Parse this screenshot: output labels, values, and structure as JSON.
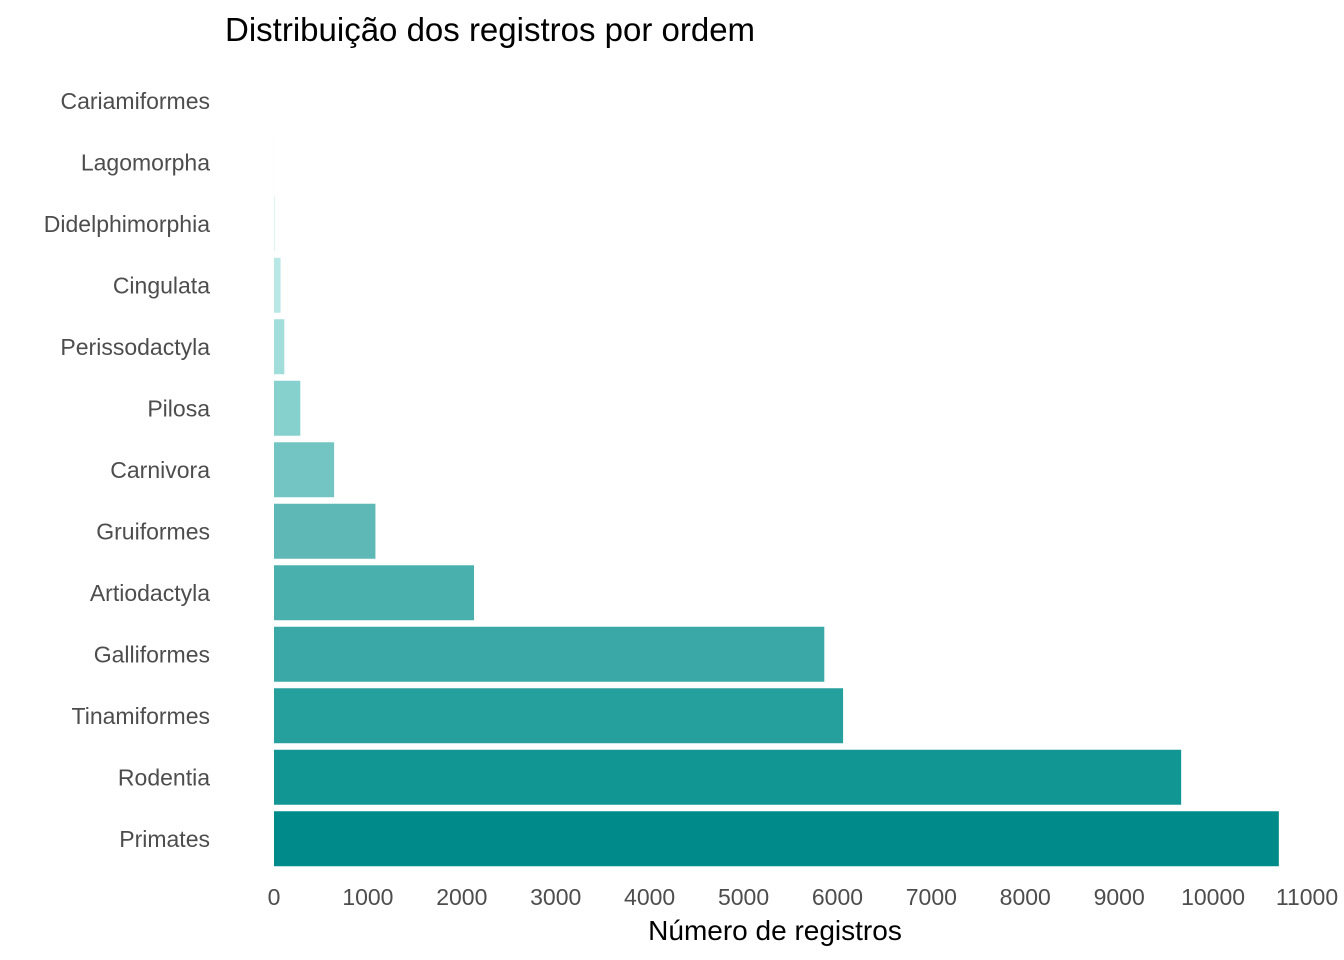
{
  "chart_data": {
    "type": "bar",
    "orientation": "horizontal",
    "title": "Distribuição dos registros por ordem",
    "xlabel": "Número de registros",
    "ylabel": "",
    "xlim": [
      0,
      11000
    ],
    "xticks": [
      0,
      1000,
      2000,
      3000,
      4000,
      5000,
      6000,
      7000,
      8000,
      9000,
      10000,
      11000
    ],
    "grid": false,
    "legend": "none",
    "categories": [
      "Cariamiformes",
      "Lagomorpha",
      "Didelphimorphia",
      "Cingulata",
      "Perissodactyla",
      "Pilosa",
      "Carnivora",
      "Gruiformes",
      "Artiodactyla",
      "Galliformes",
      "Tinamiformes",
      "Rodentia",
      "Primates"
    ],
    "values": [
      1,
      3,
      12,
      70,
      110,
      280,
      640,
      1080,
      2130,
      5860,
      6060,
      9660,
      10700
    ],
    "colors": [
      "#ffffff",
      "#f2fbfb",
      "#ddf4f3",
      "#b9e7e5",
      "#a0dddb",
      "#86d0ce",
      "#73c5c3",
      "#5db8b6",
      "#4ab0ae",
      "#3aa8a6",
      "#25a09d",
      "#129694",
      "#008b8b"
    ]
  }
}
